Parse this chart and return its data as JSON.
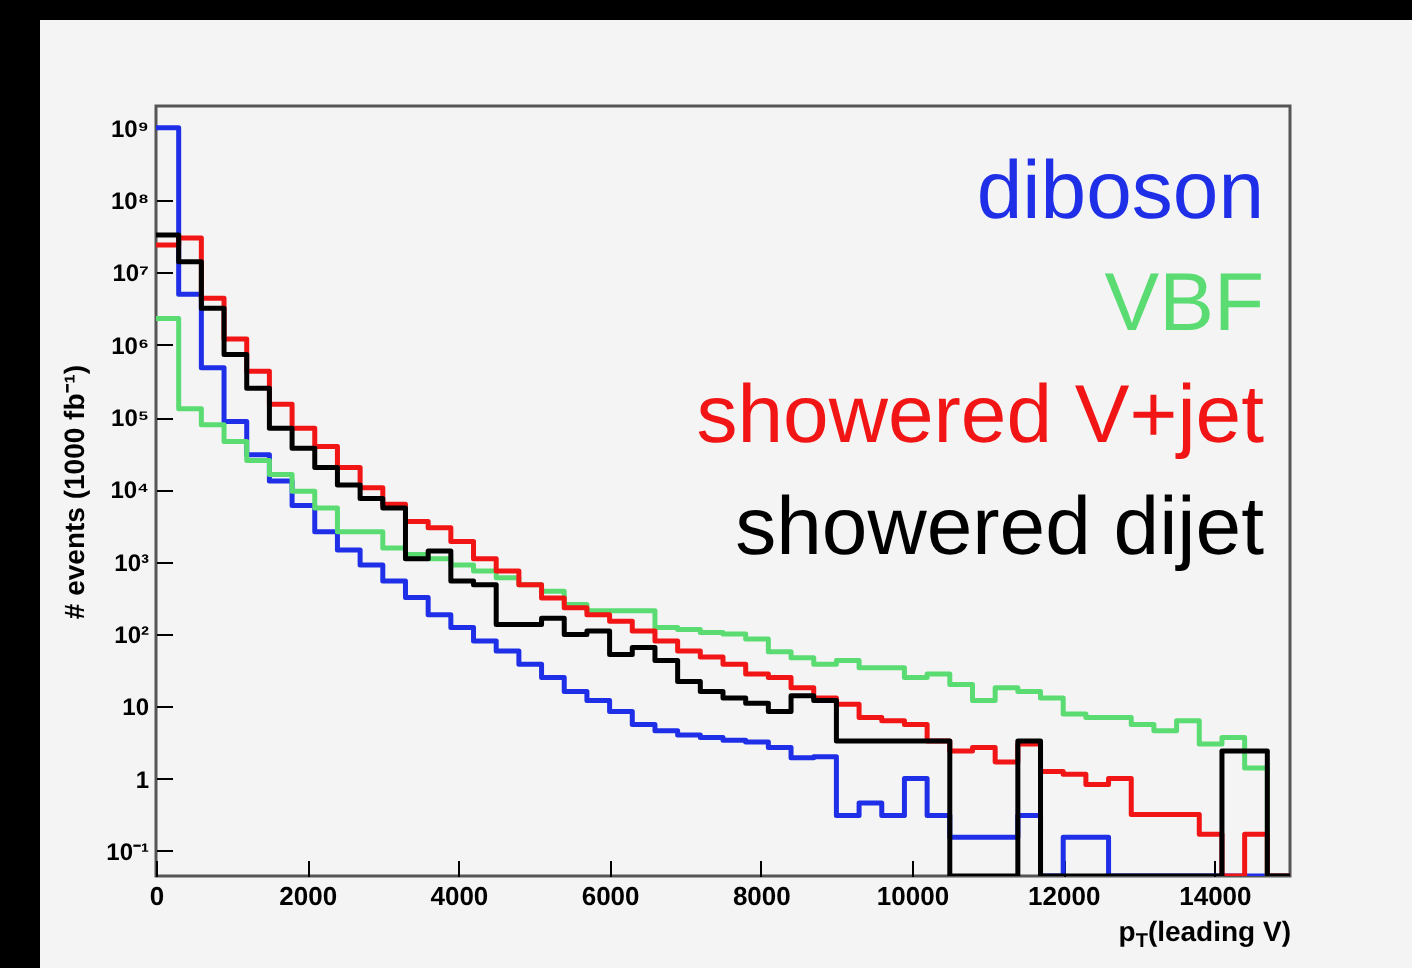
{
  "chart_data": {
    "type": "histogram",
    "xlabel": "p$_{T}$(leading V)",
    "ylabel": "# events (1000 fb⁻¹)",
    "log": "y",
    "legend": "top right",
    "xlim": [
      0,
      15000
    ],
    "xticks": [
      0,
      2000,
      4000,
      6000,
      8000,
      10000,
      12000,
      14000
    ],
    "ylim": [
      0.045,
      2000000000
    ],
    "yticks": [
      {
        "value": 0.1,
        "label": "10⁻¹"
      },
      1,
      10,
      {
        "value": 100,
        "label": "10²"
      },
      {
        "value": 1000,
        "label": "10³"
      },
      {
        "value": 10000,
        "label": "10⁴"
      },
      {
        "value": 100000,
        "label": "10⁵"
      },
      {
        "value": 1000000,
        "label": "10⁶"
      },
      {
        "value": 10000000,
        "label": "10⁷"
      },
      {
        "value": 100000000,
        "label": "10⁸"
      },
      {
        "value": 1000000000,
        "label": "10⁹"
      }
    ],
    "bins": [
      0,
      300,
      600,
      900,
      1200,
      1500,
      1800,
      2100,
      2400,
      2700,
      3000,
      3300,
      3600,
      3900,
      4200,
      4500,
      4800,
      5100,
      5400,
      5700,
      6000,
      6300,
      6600,
      6900,
      7200,
      7500,
      7800,
      8100,
      8400,
      8700,
      9000,
      9300,
      9600,
      9900,
      10200,
      10500,
      10800,
      11100,
      11400,
      11700,
      12000,
      12300,
      12600,
      12900,
      13200,
      13500,
      13800,
      14100,
      14400,
      14700,
      15000
    ],
    "series": [
      {
        "name": "diboson",
        "color": "#1f2fe8",
        "values": [
          1000000000,
          5000000,
          480000,
          87000,
          30000,
          13000,
          6000,
          2600,
          1450,
          900,
          540,
          320,
          185,
          123,
          80,
          58,
          38,
          25,
          16,
          12,
          8.5,
          5.6,
          4.6,
          4,
          3.7,
          3.4,
          3.2,
          2.7,
          1.95,
          2,
          0.31,
          0.46,
          0.31,
          1,
          0.31,
          0.155,
          0.155,
          0.155,
          0.31,
          null,
          0.155,
          0.155,
          null,
          null,
          null,
          null,
          null,
          null,
          null,
          null
        ]
      },
      {
        "name": "VBF",
        "color": "#5bdc73",
        "values": [
          2300000,
          130000,
          78000,
          46000,
          25000,
          16000,
          9400,
          5500,
          2600,
          2600,
          1550,
          1260,
          1100,
          900,
          740,
          600,
          480,
          390,
          255,
          210,
          210,
          210,
          123,
          115,
          105,
          100,
          85,
          57,
          47,
          38,
          43,
          34,
          34,
          25,
          28,
          20,
          12,
          18,
          16,
          13,
          7.8,
          7,
          7,
          5.6,
          4.6,
          6.3,
          3,
          3.7,
          1.4,
          null
        ]
      },
      {
        "name": "showered V+jet",
        "color": "#f21515",
        "values": [
          24000000,
          30000000,
          4400000,
          1200000,
          430000,
          150000,
          70000,
          39000,
          20000,
          10500,
          6200,
          3600,
          2950,
          1900,
          1100,
          740,
          480,
          315,
          230,
          185,
          150,
          110,
          80,
          58,
          48,
          38,
          28,
          25,
          18,
          13,
          10.7,
          7,
          6.3,
          5.6,
          3.3,
          2.4,
          2.7,
          1.7,
          3,
          1.25,
          1.15,
          0.83,
          1,
          0.32,
          0.32,
          0.32,
          0.17,
          null,
          0.17,
          null
        ]
      },
      {
        "name": "showered dijet",
        "color": "#000000",
        "values": [
          33000000,
          14000000,
          3200000,
          730000,
          250000,
          70000,
          37000,
          20000,
          11500,
          7500,
          5500,
          1100,
          1400,
          540,
          480,
          135,
          135,
          165,
          98,
          110,
          52,
          65,
          43,
          22,
          16,
          13,
          11,
          8.5,
          14,
          12,
          3.3,
          3.3,
          3.3,
          3.3,
          3.3,
          null,
          null,
          null,
          3.3,
          null,
          null,
          null,
          null,
          null,
          null,
          null,
          null,
          2.4,
          2.4,
          null
        ]
      }
    ]
  }
}
